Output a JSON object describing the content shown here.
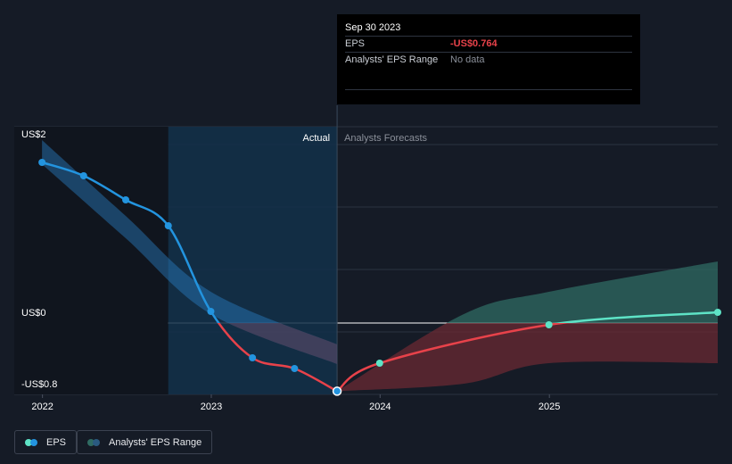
{
  "colors": {
    "background": "#151b26",
    "actual_line": "#2394df",
    "actual_band": "#2a7fc4",
    "eps_negative": "#e8424a",
    "forecast_positive": "#5ee3c6",
    "forecast_band_positive": "#2f6b63",
    "forecast_band_negative": "#6a2a33",
    "highlight_region": "#12304a"
  },
  "tooltip": {
    "date": "Sep 30 2023",
    "eps_label": "EPS",
    "eps_value": "-US$0.764",
    "range_label": "Analysts' EPS Range",
    "range_value": "No data"
  },
  "region_labels": {
    "actual": "Actual",
    "forecast": "Analysts Forecasts"
  },
  "legend": [
    {
      "label": "EPS",
      "icon": "eps-legend-icon"
    },
    {
      "label": "Analysts' EPS Range",
      "icon": "range-legend-icon"
    }
  ],
  "chart_data": {
    "type": "line",
    "y_tick_labels": [
      "US$2",
      "US$0",
      "-US$0.8"
    ],
    "x_tick_labels": [
      "2022",
      "2023",
      "2024",
      "2025"
    ],
    "ylim": [
      -0.8,
      2.2
    ],
    "xlim": [
      "2021-11-01",
      "2025-12-31"
    ],
    "grid": true,
    "legend_position": "bottom-left",
    "series": [
      {
        "name": "EPS",
        "role": "actual",
        "x": [
          "2021-12-31",
          "2022-03-31",
          "2022-06-30",
          "2022-09-30",
          "2022-12-31",
          "2023-03-31",
          "2023-06-30",
          "2023-09-30"
        ],
        "y": [
          1.8,
          1.65,
          1.38,
          1.09,
          0.13,
          -0.39,
          -0.51,
          -0.764
        ]
      },
      {
        "name": "EPS",
        "role": "forecast",
        "x": [
          "2023-09-30",
          "2023-12-31",
          "2024-12-31",
          "2025-12-31"
        ],
        "y": [
          -0.764,
          -0.45,
          -0.02,
          0.12
        ]
      }
    ],
    "actual_range_band": {
      "x": [
        "2021-12-31",
        "2022-06-30",
        "2022-12-31",
        "2023-09-30"
      ],
      "upper": [
        2.05,
        1.2,
        0.35,
        -0.24
      ],
      "lower": [
        1.78,
        0.95,
        0.1,
        -0.46
      ]
    },
    "forecast_range_band": {
      "x": [
        "2023-09-30",
        "2024-06-30",
        "2024-12-31",
        "2025-12-31"
      ],
      "upper": [
        -0.764,
        0.1,
        0.35,
        0.69
      ],
      "lower": [
        -0.764,
        -0.68,
        -0.45,
        -0.45
      ]
    },
    "highlight_x": "2023-09-30"
  }
}
